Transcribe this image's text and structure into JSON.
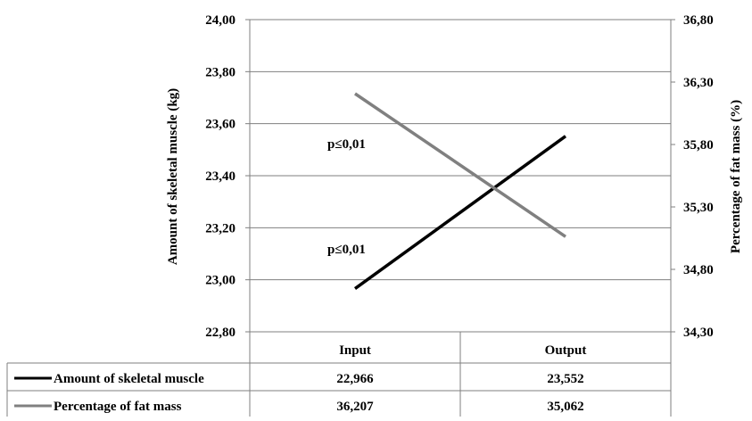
{
  "chart_data": {
    "type": "line",
    "categories": [
      "Input",
      "Output"
    ],
    "series": [
      {
        "name": "Amount of skeletal muscle",
        "values": [
          22.966,
          23.552
        ],
        "value_labels": [
          "22,966",
          "23,552"
        ],
        "axis": "left",
        "color": "#000000"
      },
      {
        "name": "Percentage of fat mass",
        "values": [
          36.207,
          35.062
        ],
        "value_labels": [
          "36,207",
          "35,062"
        ],
        "axis": "right",
        "color": "#808080"
      }
    ],
    "left_axis": {
      "label": "Amount of skeletal muscle (kg)",
      "ylim": [
        22.8,
        24.0
      ],
      "ticks": [
        22.8,
        23.0,
        23.2,
        23.4,
        23.6,
        23.8,
        24.0
      ],
      "tick_labels": [
        "22,80",
        "23,00",
        "23,20",
        "23,40",
        "23,60",
        "23,80",
        "24,00"
      ]
    },
    "right_axis": {
      "label": "Percentage of fat mass (%)",
      "ylim": [
        34.3,
        36.8
      ],
      "ticks": [
        34.3,
        34.8,
        35.3,
        35.8,
        36.3,
        36.8
      ],
      "tick_labels": [
        "34,30",
        "34,80",
        "35,30",
        "35,80",
        "36,30",
        "36,80"
      ]
    },
    "annotations": [
      "p≤0,01",
      "p≤0,01"
    ],
    "grid": true,
    "legend": "data-table-below"
  }
}
